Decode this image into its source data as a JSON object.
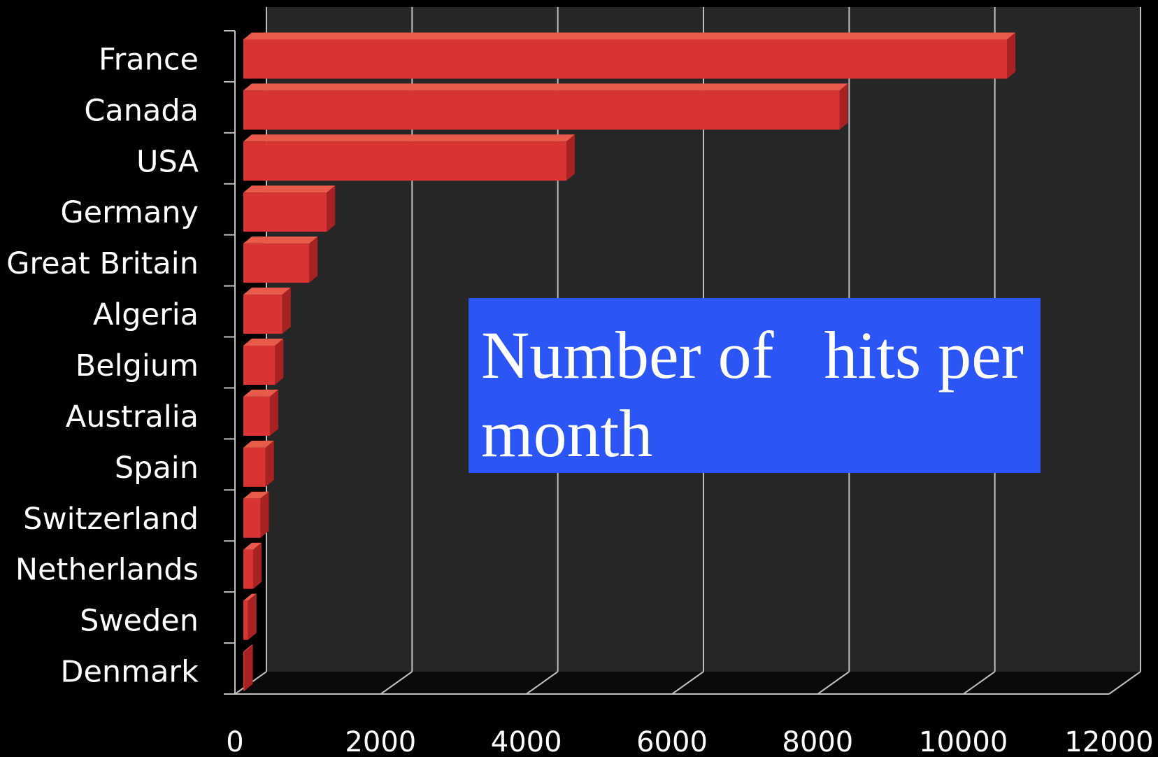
{
  "chart_data": {
    "type": "bar",
    "orientation": "horizontal",
    "title": "Number of   hits per month",
    "xlabel": "",
    "ylabel": "",
    "xlim": [
      0,
      12000
    ],
    "xticks": [
      0,
      2000,
      4000,
      6000,
      8000,
      10000,
      12000
    ],
    "categories": [
      "France",
      "Canada",
      "USA",
      "Germany",
      "Great Britain",
      "Algeria",
      "Belgium",
      "Australia",
      "Spain",
      "Switzerland",
      "Netherlands",
      "Sweden",
      "Denmark"
    ],
    "values": [
      10600,
      8300,
      4550,
      1260,
      1020,
      650,
      550,
      480,
      420,
      350,
      250,
      180,
      130
    ],
    "grid": true,
    "legend": "none",
    "colors": {
      "bar": "#d93434",
      "bar_top": "#e85a4a",
      "bar_side": "#a82222",
      "plot_back": "#262626",
      "floor": "#0a0a0a",
      "grid": "#bfbfbf",
      "background": "#000000",
      "title_box": "#2b55f5"
    }
  }
}
